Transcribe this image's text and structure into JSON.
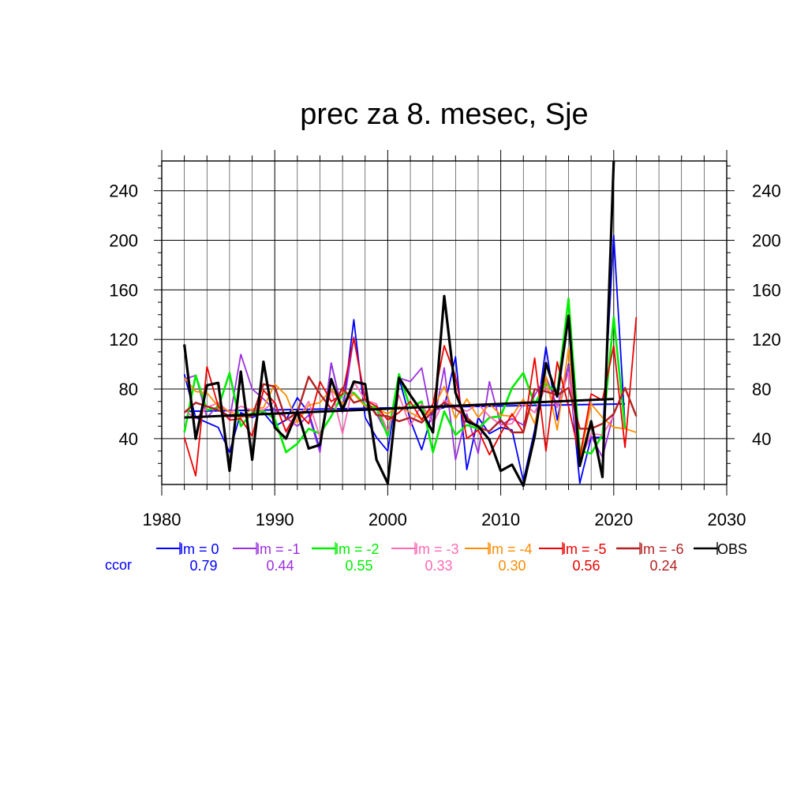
{
  "chart_data": {
    "type": "line",
    "title": "prec za 8. mesec, Sje",
    "xlim": [
      1980,
      2030
    ],
    "ylim": [
      3,
      264
    ],
    "x_ticks": [
      "1980",
      "1990",
      "2000",
      "2010",
      "2020",
      "2030"
    ],
    "y_ticks": [
      "40",
      "80",
      "120",
      "160",
      "200",
      "240"
    ],
    "grid": true,
    "legend_placement": "bottom",
    "ccor_label": "ccor",
    "series": [
      {
        "name": "lm = 0",
        "ccor": "0.79",
        "color": "#0000ff",
        "width": 1.8,
        "x": [
          1982,
          1983,
          1984,
          1985,
          1986,
          1987,
          1988,
          1989,
          1990,
          1991,
          1992,
          1993,
          1994,
          1995,
          1996,
          1997,
          1998,
          1999,
          2000,
          2001,
          2002,
          2003,
          2004,
          2005,
          2006,
          2007,
          2008,
          2009,
          2010,
          2011,
          2012,
          2013,
          2014,
          2015,
          2016,
          2017,
          2018,
          2019,
          2020,
          2021
        ],
        "y": [
          92,
          57,
          53,
          49,
          29,
          61,
          57,
          61,
          50,
          55,
          73,
          61,
          31,
          101,
          61,
          136,
          57,
          41,
          30,
          89,
          55,
          31,
          63,
          65,
          106,
          15,
          57,
          44,
          49,
          47,
          6,
          47,
          114,
          55,
          100,
          4,
          41,
          41,
          204,
          50
        ],
        "trend": [
          62,
          68
        ]
      },
      {
        "name": "lm = -1",
        "ccor": "0.44",
        "color": "#9b30e0",
        "width": 1.8,
        "x": [
          1982,
          1983,
          1984,
          1985,
          1986,
          1987,
          1988,
          1989,
          1990,
          1991,
          1992,
          1993,
          1994,
          1995,
          1996,
          1997,
          1998,
          1999,
          2000,
          2001,
          2002,
          2003,
          2004,
          2005,
          2006,
          2007,
          2008,
          2009,
          2010,
          2011,
          2012,
          2013,
          2014,
          2015,
          2016,
          2017,
          2018,
          2019,
          2020
        ],
        "y": [
          88,
          91,
          57,
          67,
          55,
          108,
          80,
          72,
          63,
          57,
          50,
          59,
          29,
          101,
          61,
          122,
          71,
          60,
          43,
          89,
          86,
          97,
          50,
          97,
          23,
          60,
          28,
          86,
          51,
          56,
          51,
          75,
          90,
          66,
          99,
          24,
          42,
          25,
          61
        ]
      },
      {
        "name": "lm = -2",
        "ccor": "0.55",
        "color": "#00ee00",
        "width": 2.6,
        "x": [
          1982,
          1983,
          1984,
          1985,
          1986,
          1987,
          1988,
          1989,
          1990,
          1991,
          1992,
          1993,
          1994,
          1995,
          1996,
          1997,
          1998,
          1999,
          2000,
          2001,
          2002,
          2003,
          2004,
          2005,
          2006,
          2007,
          2008,
          2009,
          2010,
          2011,
          2012,
          2013,
          2014,
          2015,
          2016,
          2017,
          2018,
          2019,
          2020,
          2021
        ],
        "y": [
          45,
          91,
          63,
          65,
          93,
          50,
          61,
          62,
          56,
          29,
          36,
          48,
          44,
          58,
          76,
          77,
          67,
          65,
          42,
          92,
          65,
          70,
          29,
          62,
          43,
          51,
          48,
          57,
          58,
          81,
          93,
          68,
          84,
          77,
          153,
          30,
          28,
          43,
          138,
          48
        ]
      },
      {
        "name": "lm = -3",
        "ccor": "0.33",
        "color": "#ff69b4",
        "width": 1.8,
        "x": [
          1982,
          1983,
          1984,
          1985,
          1986,
          1987,
          1988,
          1989,
          1990,
          1991,
          1992,
          1993,
          1994,
          1995,
          1996,
          1997,
          1998,
          1999,
          2000,
          2001,
          2002,
          2003,
          2004,
          2005,
          2006,
          2007,
          2008,
          2009,
          2010,
          2011,
          2012,
          2013,
          2014,
          2015,
          2016,
          2017,
          2018,
          2019,
          2020
        ],
        "y": [
          63,
          56,
          65,
          69,
          61,
          66,
          63,
          63,
          70,
          45,
          55,
          70,
          41,
          80,
          44,
          86,
          71,
          68,
          46,
          75,
          50,
          68,
          52,
          71,
          66,
          62,
          68,
          58,
          51,
          52,
          68,
          61,
          82,
          65,
          93,
          22,
          44,
          43,
          58
        ]
      },
      {
        "name": "lm = -4",
        "ccor": "0.30",
        "color": "#ff8c00",
        "width": 1.8,
        "x": [
          1982,
          1983,
          1984,
          1985,
          1986,
          1987,
          1988,
          1989,
          1990,
          1991,
          1992,
          1993,
          1994,
          1995,
          1996,
          1997,
          1998,
          1999,
          2000,
          2001,
          2002,
          2003,
          2004,
          2005,
          2006,
          2007,
          2008,
          2009,
          2010,
          2011,
          2012,
          2013,
          2014,
          2015,
          2016,
          2017,
          2018,
          2019,
          2020,
          2021,
          2022
        ],
        "y": [
          89,
          78,
          77,
          66,
          62,
          57,
          64,
          65,
          84,
          75,
          53,
          67,
          69,
          80,
          68,
          76,
          66,
          64,
          60,
          66,
          61,
          56,
          64,
          82,
          56,
          72,
          57,
          68,
          59,
          58,
          72,
          52,
          90,
          47,
          113,
          23,
          68,
          57,
          49,
          48,
          45
        ]
      },
      {
        "name": "lm = -5",
        "ccor": "0.56",
        "color": "#ee0000",
        "width": 1.8,
        "x": [
          1982,
          1983,
          1984,
          1985,
          1986,
          1987,
          1988,
          1989,
          1990,
          1991,
          1992,
          1993,
          1994,
          1995,
          1996,
          1997,
          1998,
          1999,
          2000,
          2001,
          2002,
          2003,
          2004,
          2005,
          2006,
          2007,
          2008,
          2009,
          2010,
          2011,
          2012,
          2013,
          2014,
          2015,
          2016,
          2017,
          2018,
          2019,
          2020,
          2021,
          2022
        ],
        "y": [
          41,
          10,
          98,
          66,
          55,
          56,
          42,
          79,
          69,
          46,
          62,
          52,
          86,
          70,
          76,
          121,
          71,
          66,
          55,
          61,
          70,
          55,
          68,
          115,
          90,
          40,
          47,
          27,
          44,
          60,
          45,
          105,
          30,
          102,
          66,
          25,
          76,
          71,
          115,
          33,
          138
        ]
      },
      {
        "name": "lm = -6",
        "ccor": "0.24",
        "color": "#b22222",
        "width": 2.4,
        "x": [
          1982,
          1983,
          1984,
          1985,
          1986,
          1987,
          1988,
          1989,
          1990,
          1991,
          1992,
          1993,
          1994,
          1995,
          1996,
          1997,
          1998,
          1999,
          2000,
          2001,
          2002,
          2003,
          2004,
          2005,
          2006,
          2007,
          2008,
          2009,
          2010,
          2011,
          2012,
          2013,
          2014,
          2015,
          2016,
          2017,
          2018,
          2019,
          2020,
          2021,
          2022
        ],
        "y": [
          61,
          69,
          66,
          63,
          58,
          58,
          58,
          84,
          82,
          55,
          61,
          90,
          76,
          64,
          81,
          69,
          72,
          59,
          58,
          54,
          57,
          53,
          62,
          69,
          64,
          57,
          49,
          46,
          55,
          45,
          45,
          80,
          78,
          75,
          81,
          48,
          48,
          52,
          60,
          81,
          58
        ]
      },
      {
        "name": "OBS",
        "ccor": "",
        "color": "#000000",
        "width": 3.2,
        "x": [
          1982,
          1983,
          1984,
          1985,
          1986,
          1987,
          1988,
          1989,
          1990,
          1991,
          1992,
          1993,
          1994,
          1995,
          1996,
          1997,
          1998,
          1999,
          2000,
          2001,
          2002,
          2003,
          2004,
          2005,
          2006,
          2007,
          2008,
          2009,
          2010,
          2011,
          2012,
          2013,
          2014,
          2015,
          2016,
          2017,
          2018,
          2019,
          2020
        ],
        "y": [
          116,
          40,
          83,
          85,
          14,
          94,
          23,
          102,
          49,
          40,
          62,
          32,
          35,
          88,
          63,
          86,
          84,
          23,
          4,
          89,
          75,
          62,
          45,
          155,
          77,
          54,
          50,
          39,
          14,
          19,
          2,
          42,
          101,
          74,
          139,
          18,
          54,
          9,
          264
        ],
        "trend": [
          57,
          72
        ]
      }
    ]
  }
}
